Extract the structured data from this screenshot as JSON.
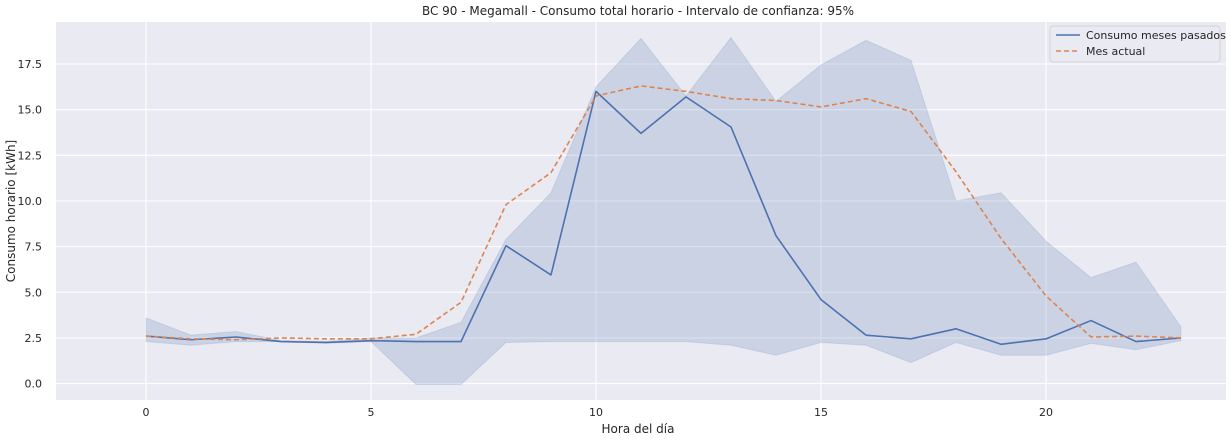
{
  "chart_data": {
    "type": "line",
    "title": "BC 90 - Megamall - Consumo total horario - Intervalo de confianza: 95%",
    "xlabel": "Hora del día",
    "ylabel": "Consumo horario [kWh]",
    "xlim": [
      -2.0,
      24.0
    ],
    "ylim": [
      -0.9,
      19.8
    ],
    "x_ticks": [
      0,
      5,
      10,
      15,
      20
    ],
    "y_ticks": [
      0.0,
      2.5,
      5.0,
      7.5,
      10.0,
      12.5,
      15.0,
      17.5
    ],
    "y_tick_labels": [
      "0.0",
      "2.5",
      "5.0",
      "7.5",
      "10.0",
      "12.5",
      "15.0",
      "17.5"
    ],
    "grid": true,
    "legend_position": "top-right",
    "background_color": "#eaeaf2",
    "x": [
      0,
      1,
      2,
      3,
      4,
      5,
      6,
      7,
      8,
      9,
      10,
      11,
      12,
      13,
      14,
      15,
      16,
      17,
      18,
      19,
      20,
      21,
      22,
      23
    ],
    "series": [
      {
        "name": "Consumo meses pasados",
        "style": "solid",
        "color": "#4c72b0",
        "values": [
          2.6,
          2.4,
          2.55,
          2.3,
          2.25,
          2.35,
          2.3,
          2.3,
          7.55,
          5.95,
          16.0,
          13.7,
          15.7,
          14.05,
          8.1,
          4.6,
          2.65,
          2.45,
          3.0,
          2.15,
          2.45,
          3.45,
          2.3,
          2.5
        ],
        "ci_lower": [
          2.3,
          2.1,
          2.3,
          2.3,
          2.2,
          2.3,
          -0.05,
          -0.05,
          2.25,
          2.3,
          2.3,
          2.3,
          2.3,
          2.1,
          1.55,
          2.25,
          2.1,
          1.15,
          2.25,
          1.55,
          1.55,
          2.2,
          1.85,
          2.35
        ],
        "ci_upper": [
          3.6,
          2.65,
          2.85,
          2.35,
          2.3,
          2.5,
          2.5,
          3.35,
          7.9,
          10.45,
          16.25,
          18.9,
          15.75,
          18.95,
          15.45,
          17.45,
          18.8,
          17.7,
          10.0,
          10.45,
          7.8,
          5.8,
          6.65,
          3.1
        ],
        "ci_color": "#4c72b0"
      },
      {
        "name": "Mes actual",
        "style": "dashed",
        "color": "#dd8452",
        "values": [
          2.6,
          2.45,
          2.4,
          2.5,
          2.45,
          2.45,
          2.7,
          4.45,
          9.8,
          11.55,
          15.75,
          16.3,
          16.0,
          15.6,
          15.5,
          15.15,
          15.6,
          14.9,
          11.6,
          7.95,
          4.8,
          2.55,
          2.6,
          2.5
        ]
      }
    ]
  }
}
